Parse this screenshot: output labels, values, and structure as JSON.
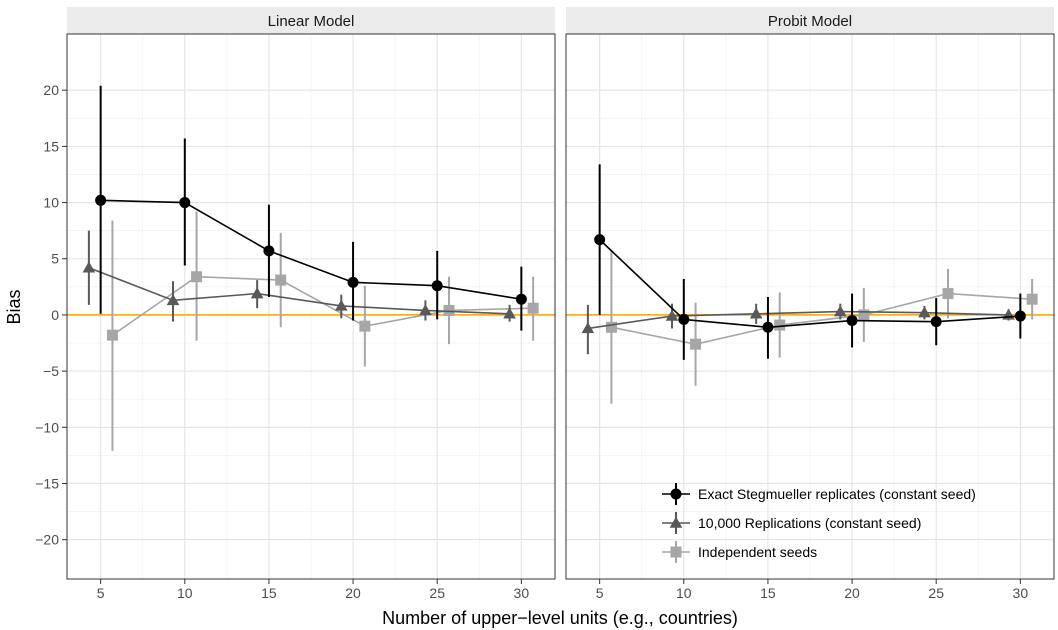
{
  "chart_data": {
    "type": "line",
    "xlabel": "Number of upper−level units (e.g., countries)",
    "ylabel": "Bias",
    "xlim": [
      3,
      32
    ],
    "ylim": [
      -23.5,
      25
    ],
    "x_ticks": [
      5,
      10,
      15,
      20,
      25,
      30
    ],
    "x_tick_labels": [
      "5",
      "10",
      "15",
      "20",
      "25",
      "30"
    ],
    "y_ticks": [
      20,
      15,
      10,
      5,
      0,
      -5,
      -10,
      -15,
      -20
    ],
    "y_tick_labels": [
      "20",
      "15",
      "10",
      "5",
      "0",
      "−5",
      "−10",
      "−15",
      "−20"
    ],
    "hline": {
      "y": 0,
      "color": "#f4a300"
    },
    "grid": true,
    "legend_position": "bottom-right inside second panel",
    "series_meta": [
      {
        "name": "Exact Stegmueller replicates (constant seed)",
        "color": "#000000",
        "marker": "circle",
        "offset": 0
      },
      {
        "name": "10,000 Replications (constant seed)",
        "color": "#595959",
        "marker": "triangle",
        "offset": -0.7
      },
      {
        "name": "Independent seeds",
        "color": "#a6a6a6",
        "marker": "square",
        "offset": 0.7
      }
    ],
    "panels": [
      {
        "title": "Linear Model",
        "series": [
          {
            "name": "Exact Stegmueller replicates (constant seed)",
            "x": [
              5,
              10,
              15,
              20,
              25,
              30
            ],
            "y": [
              10.2,
              10.0,
              5.7,
              2.9,
              2.6,
              1.4
            ],
            "lower": [
              0.1,
              4.4,
              1.6,
              -0.5,
              -0.4,
              -1.4
            ],
            "upper": [
              20.4,
              15.7,
              9.8,
              6.5,
              5.7,
              4.3
            ]
          },
          {
            "name": "10,000 Replications (constant seed)",
            "x": [
              5,
              10,
              15,
              20,
              25,
              30
            ],
            "y": [
              4.2,
              1.3,
              1.9,
              0.8,
              0.4,
              0.1
            ],
            "lower": [
              0.9,
              -0.6,
              0.6,
              -0.3,
              -0.5,
              -0.6
            ],
            "upper": [
              7.5,
              3.0,
              3.1,
              1.8,
              1.3,
              0.9
            ]
          },
          {
            "name": "Independent seeds",
            "x": [
              5,
              10,
              15,
              20,
              25,
              30
            ],
            "y": [
              -1.8,
              3.4,
              3.1,
              -1.0,
              0.4,
              0.6
            ],
            "lower": [
              -12.1,
              -2.3,
              -1.1,
              -4.6,
              -2.6,
              -2.3
            ],
            "upper": [
              8.4,
              9.2,
              7.3,
              2.6,
              3.4,
              3.4
            ]
          }
        ]
      },
      {
        "title": "Probit Model",
        "series": [
          {
            "name": "Exact Stegmueller replicates (constant seed)",
            "x": [
              5,
              10,
              15,
              20,
              25,
              30
            ],
            "y": [
              6.7,
              -0.4,
              -1.1,
              -0.5,
              -0.6,
              -0.1
            ],
            "lower": [
              0.0,
              -4.0,
              -3.9,
              -2.9,
              -2.7,
              -2.1
            ],
            "upper": [
              13.4,
              3.2,
              1.6,
              1.9,
              1.5,
              1.9
            ]
          },
          {
            "name": "10,000 Replications (constant seed)",
            "x": [
              5,
              10,
              15,
              20,
              25,
              30
            ],
            "y": [
              -1.2,
              -0.1,
              0.1,
              0.3,
              0.2,
              0.0
            ],
            "lower": [
              -3.5,
              -1.2,
              -0.8,
              -0.4,
              -0.4,
              -0.5
            ],
            "upper": [
              0.9,
              1.0,
              1.0,
              1.0,
              0.8,
              0.5
            ]
          },
          {
            "name": "Independent seeds",
            "x": [
              5,
              10,
              15,
              20,
              25,
              30
            ],
            "y": [
              -1.1,
              -2.6,
              -0.9,
              0.0,
              1.9,
              1.4
            ],
            "lower": [
              -7.9,
              -6.3,
              -3.8,
              -2.4,
              -0.3,
              -0.4
            ],
            "upper": [
              5.8,
              1.1,
              2.0,
              2.4,
              4.1,
              3.2
            ]
          }
        ]
      }
    ]
  }
}
